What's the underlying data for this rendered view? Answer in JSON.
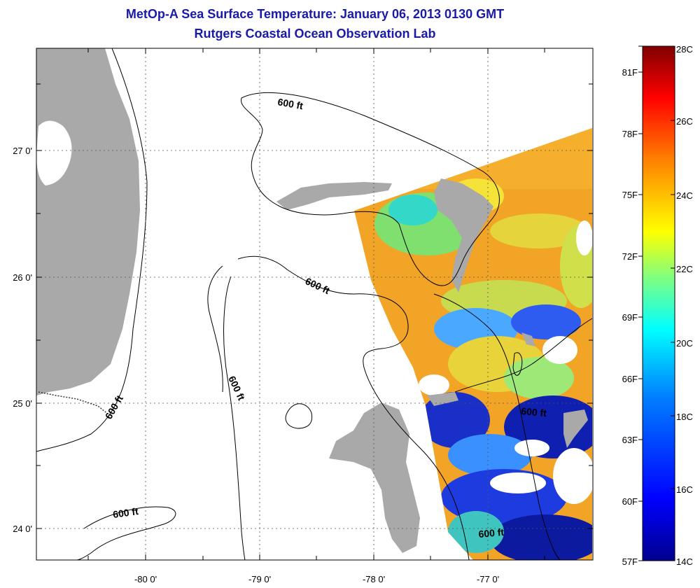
{
  "header": {
    "title": "MetOp-A Sea Surface Temperature:  January 06, 2013 0130 GMT",
    "subtitle": "Rutgers Coastal Ocean Observation Lab"
  },
  "map": {
    "lon_labels": [
      "-80 0'",
      "-79 0'",
      "-78 0'",
      "-77 0'"
    ],
    "lat_labels": [
      "27 0'",
      "26 0'",
      "25 0'",
      "24 0'"
    ],
    "contour_labels": [
      "600 ft",
      "600 ft",
      "600 ft",
      "600 ft",
      "600 ft",
      "600 ft",
      "600 ft"
    ],
    "colors": {
      "land": "#a9a9a9",
      "frame": "#000000",
      "grid": "#000000"
    }
  },
  "colorbar": {
    "celsius_labels": [
      "28C",
      "26C",
      "24C",
      "22C",
      "20C",
      "18C",
      "16C",
      "14C"
    ],
    "fahrenheit_labels": [
      "81F",
      "78F",
      "75F",
      "72F",
      "69F",
      "66F",
      "63F",
      "60F",
      "57F"
    ],
    "celsius_range": [
      14,
      28
    ],
    "colors": [
      "#800000",
      "#ff0000",
      "#ff8000",
      "#ffff00",
      "#80ff80",
      "#00ffff",
      "#0080ff",
      "#0000ff",
      "#00008f"
    ]
  }
}
